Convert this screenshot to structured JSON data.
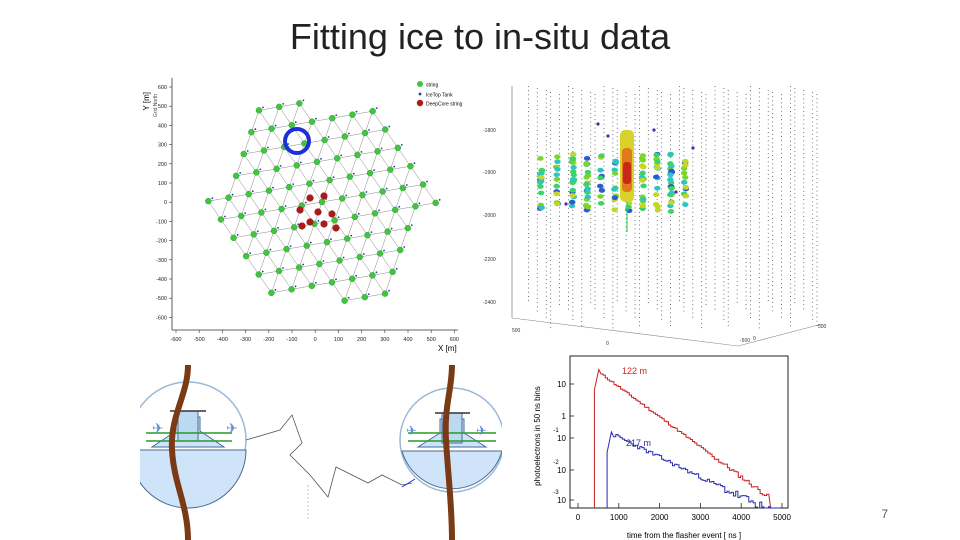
{
  "slide": {
    "title": "Fitting ice to in-situ data",
    "page_number": "7"
  },
  "string_map": {
    "y_label": "Y [m]",
    "x_label": "X [m]",
    "grid_north": "Grid North",
    "legend": [
      {
        "label": "string",
        "color": "#3ec63e"
      },
      {
        "label": "IceTop Tank",
        "color": "#1f3fb0"
      },
      {
        "label": "DeepCore string",
        "color": "#b01818"
      }
    ],
    "x_ticks": [
      "-600",
      "-500",
      "-400",
      "-300",
      "-200",
      "-100",
      "0",
      "100",
      "200",
      "300",
      "400",
      "500",
      "600"
    ],
    "y_ticks": [
      "600",
      "500",
      "400",
      "300",
      "200",
      "100",
      "0",
      "-100",
      "-200",
      "-300",
      "-400",
      "-500",
      "-600"
    ],
    "colors": {
      "string": "#3ec63e",
      "deepcore": "#a81c1c",
      "highlight": "#1d2fd6"
    }
  },
  "event_display": {
    "z_ticks": [
      "-1800",
      "-1900",
      "-2000",
      "-2200",
      "-2400"
    ],
    "bottom_ticks": [
      "500",
      "0",
      "-500",
      "0",
      "500"
    ]
  },
  "time_hist": {
    "y_label": "photoelectrons in 50 ns bins",
    "x_label": "time from the flasher event [ ns ]",
    "x_ticks": [
      "0",
      "1000",
      "2000",
      "3000",
      "4000",
      "5000"
    ],
    "y_ticks": [
      {
        "base": "10",
        "exp": ""
      },
      {
        "base": "1",
        "exp": ""
      },
      {
        "base": "10",
        "exp": "-1"
      },
      {
        "base": "10",
        "exp": "-2"
      },
      {
        "base": "10",
        "exp": "-3"
      }
    ],
    "series": [
      {
        "name": "122 m",
        "color": "#cc2020"
      },
      {
        "name": "217 m",
        "color": "#2a2ab0"
      }
    ]
  }
}
